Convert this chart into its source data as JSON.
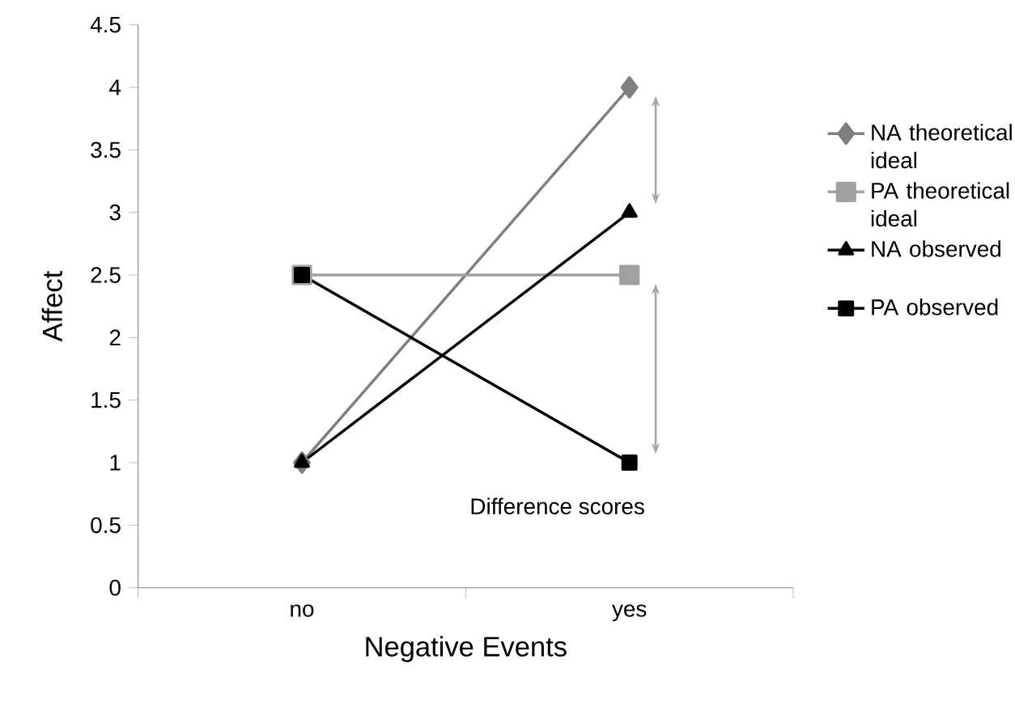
{
  "chart_data": {
    "type": "line",
    "xlabel": "Negative Events",
    "ylabel": "Affect",
    "categories": [
      "no",
      "yes"
    ],
    "series": [
      {
        "name": "NA theoretical ideal",
        "color": "#7f7f7f",
        "marker": "diamond",
        "values": [
          1,
          4
        ]
      },
      {
        "name": "PA theoretical ideal",
        "color": "#a0a0a0",
        "marker": "square",
        "values": [
          2.5,
          2.5
        ]
      },
      {
        "name": "NA observed",
        "color": "#000000",
        "marker": "triangle",
        "values": [
          1,
          3
        ]
      },
      {
        "name": "PA observed",
        "color": "#000000",
        "marker": "square",
        "values": [
          2.5,
          1
        ]
      }
    ],
    "ylim": [
      0,
      4.5
    ],
    "yticks": [
      0,
      0.5,
      1,
      1.5,
      2,
      2.5,
      3,
      3.5,
      4,
      4.5
    ],
    "grid": false,
    "legend": "right",
    "line_style": "solid",
    "annotations": [
      "Difference scores"
    ]
  }
}
